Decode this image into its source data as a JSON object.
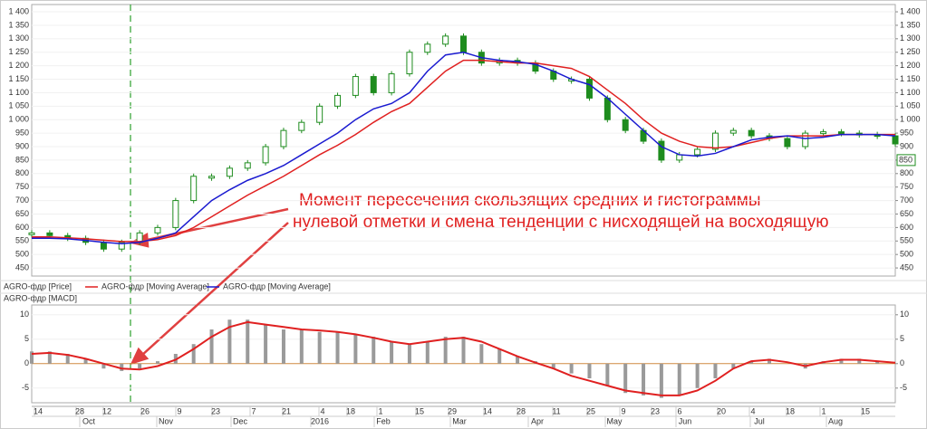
{
  "chart_data": [
    {
      "type": "stock",
      "grid": true,
      "ylim": [
        420,
        1427
      ],
      "yticks": [
        450,
        500,
        550,
        600,
        650,
        700,
        750,
        800,
        850,
        900,
        950,
        {
          "value": 1000,
          "label": "1 000"
        },
        {
          "value": 1050,
          "label": "1 050"
        },
        {
          "value": 1100,
          "label": "1 100"
        },
        {
          "value": 1150,
          "label": "1 150"
        },
        {
          "value": 1200,
          "label": "1 200"
        },
        {
          "value": 1250,
          "label": "1 250"
        },
        {
          "value": 1300,
          "label": "1 300"
        },
        {
          "value": 1350,
          "label": "1 350"
        },
        {
          "value": 1400,
          "label": "1 400"
        }
      ],
      "price_marker": 850,
      "annotation": [
        "Момент пересечения скользящих средних и гистограммы",
        "нулевой отметки и смена тенденции с нисходящей на восходящую"
      ],
      "series": [
        {
          "name": "AGRO-фдр [Price]",
          "color": "#1e8c1e",
          "kind": "candles",
          "values": [
            580,
            570,
            560,
            545,
            520,
            545,
            580,
            600,
            700,
            790,
            790,
            820,
            840,
            900,
            960,
            990,
            1050,
            1090,
            1160,
            1100,
            1170,
            1250,
            1280,
            1310,
            1250,
            1210,
            1220,
            1210,
            1180,
            1150,
            1150,
            1080,
            1000,
            960,
            920,
            850,
            870,
            890,
            950,
            960,
            940,
            930,
            900,
            950,
            955,
            950,
            945,
            940,
            910
          ]
        },
        {
          "name": "AGRO-фдр [Moving Average]",
          "color": "#e02020",
          "kind": "line",
          "values": [
            565,
            565,
            562,
            558,
            553,
            548,
            548,
            555,
            570,
            600,
            640,
            680,
            720,
            755,
            790,
            830,
            870,
            905,
            945,
            990,
            1030,
            1060,
            1120,
            1180,
            1220,
            1220,
            1215,
            1210,
            1210,
            1200,
            1190,
            1160,
            1110,
            1060,
            1000,
            950,
            920,
            900,
            895,
            900,
            915,
            930,
            940,
            940,
            940,
            945,
            945,
            945,
            945
          ]
        },
        {
          "name": "AGRO-фдр [Moving Average]",
          "color": "#1a1ad0",
          "kind": "line",
          "values": [
            560,
            560,
            558,
            552,
            545,
            540,
            545,
            560,
            580,
            640,
            700,
            740,
            775,
            800,
            830,
            870,
            910,
            950,
            1000,
            1040,
            1060,
            1100,
            1180,
            1240,
            1250,
            1230,
            1220,
            1215,
            1205,
            1180,
            1150,
            1130,
            1080,
            1020,
            960,
            900,
            870,
            865,
            875,
            900,
            925,
            935,
            940,
            930,
            935,
            945,
            945,
            945,
            940
          ]
        }
      ]
    },
    {
      "type": "macd",
      "title": "AGRO-фдр [MACD]",
      "ylim": [
        -8,
        12
      ],
      "yticks": [
        -5,
        0,
        5,
        10
      ],
      "series": [
        {
          "color": "#9a9a9a",
          "kind": "histogram",
          "values": [
            2.5,
            2.5,
            2,
            1,
            -1,
            -1.5,
            -1,
            0.5,
            2,
            4,
            7,
            9,
            9,
            8,
            7,
            7,
            6.5,
            6.5,
            6,
            5.5,
            4.5,
            4,
            4.5,
            5.5,
            5.5,
            4,
            3,
            1.5,
            0.5,
            -1,
            -2,
            -3,
            -4.5,
            -6,
            -6.5,
            -7,
            -6.5,
            -5,
            -3,
            -1,
            0.5,
            1,
            0,
            -1,
            0.5,
            1,
            1,
            0.5,
            0
          ]
        },
        {
          "color": "#e02020",
          "kind": "line",
          "values": [
            2,
            2.2,
            1.8,
            1,
            0,
            -1,
            -1.2,
            -0.5,
            0.8,
            3,
            5.5,
            7.5,
            8.5,
            8,
            7.5,
            7,
            6.8,
            6.5,
            6,
            5.3,
            4.5,
            4,
            4.5,
            5,
            5.3,
            4.5,
            3,
            1.5,
            0.2,
            -1,
            -2.5,
            -3.5,
            -4.5,
            -5.5,
            -6,
            -6.5,
            -6.5,
            -5.5,
            -3.5,
            -1,
            0.5,
            0.8,
            0.3,
            -0.5,
            0.3,
            0.8,
            0.8,
            0.5,
            0.2
          ]
        }
      ],
      "x_day_labels": [
        "14",
        "28",
        "12",
        "26",
        "9",
        "23",
        "7",
        "21",
        "4",
        "18",
        "1",
        "15",
        "29",
        "14",
        "28",
        "11",
        "25",
        "9",
        "23",
        "6",
        "20",
        "4",
        "18",
        "1",
        "15"
      ],
      "x_month_labels": [
        "Oct",
        "Nov",
        "Dec",
        "2016",
        "Feb",
        "Mar",
        "Apr",
        "May",
        "Jun",
        "Jul",
        "Aug"
      ]
    }
  ]
}
